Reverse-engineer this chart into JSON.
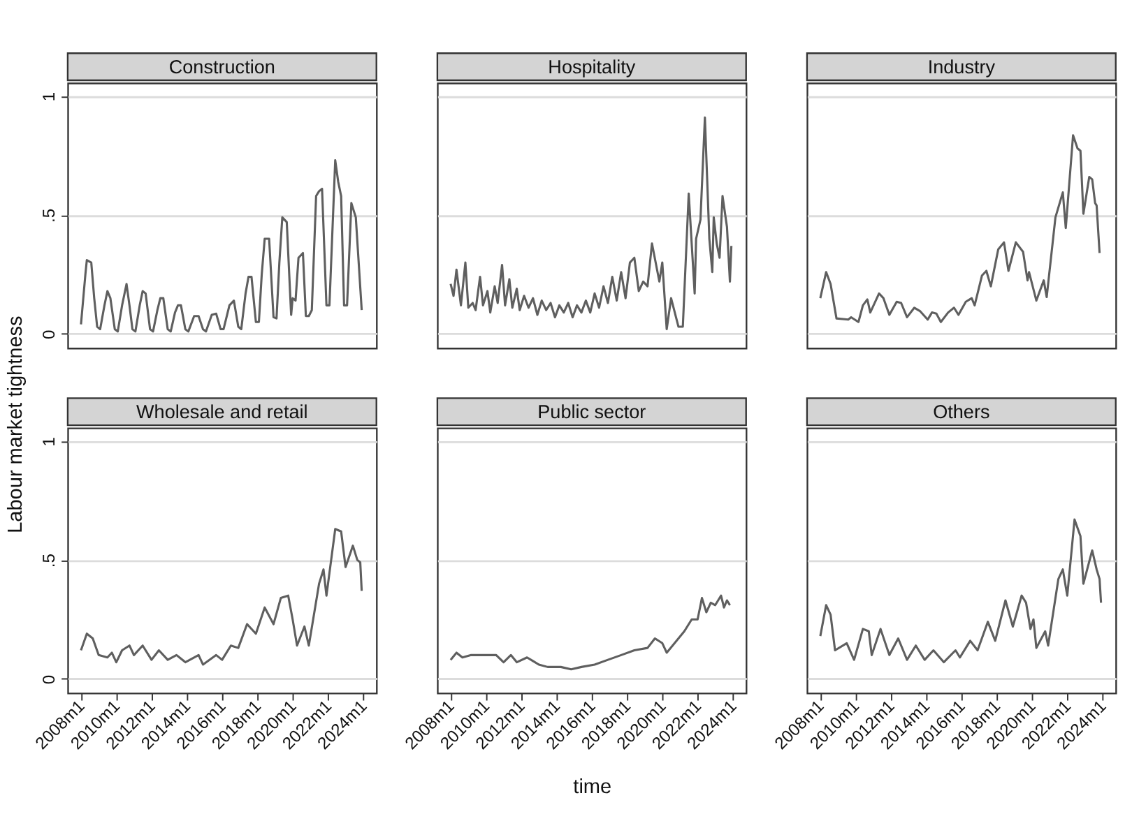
{
  "chart_data": [
    {
      "type": "line",
      "title": "Construction",
      "ylabel": "Labour market tightness",
      "xlim": [
        "2007-04",
        "2024-10"
      ],
      "ylim": [
        -0.06,
        1.055
      ],
      "yticks": [
        0,
        {
          "value": 0.5,
          "label": ".5"
        },
        1
      ],
      "grid": "y",
      "tick_labels": "y",
      "x": [
        "2008-01",
        "2008-04",
        "2008-05",
        "2008-08",
        "2008-10",
        "2008-12",
        "2009-02",
        "2009-05",
        "2009-07",
        "2009-09",
        "2009-12",
        "2010-02",
        "2010-05",
        "2010-08",
        "2010-10",
        "2010-12",
        "2011-02",
        "2011-05",
        "2011-07",
        "2011-09",
        "2011-12",
        "2012-02",
        "2012-05",
        "2012-07",
        "2012-09",
        "2012-12",
        "2013-02",
        "2013-05",
        "2013-07",
        "2013-09",
        "2013-12",
        "2014-02",
        "2014-06",
        "2014-09",
        "2014-12",
        "2015-02",
        "2015-06",
        "2015-09",
        "2015-12",
        "2016-02",
        "2016-06",
        "2016-09",
        "2016-12",
        "2017-02",
        "2017-05",
        "2017-07",
        "2017-09",
        "2017-12",
        "2018-02",
        "2018-04",
        "2018-06",
        "2018-09",
        "2018-12",
        "2019-02",
        "2019-04",
        "2019-06",
        "2019-09",
        "2019-12",
        "2020-01",
        "2020-03",
        "2020-05",
        "2020-08",
        "2020-10",
        "2020-12",
        "2021-02",
        "2021-05",
        "2021-07",
        "2021-09",
        "2021-12",
        "2022-02",
        "2022-06",
        "2022-08",
        "2022-10",
        "2022-12",
        "2023-02",
        "2023-05",
        "2023-08",
        "2023-12"
      ],
      "series": [
        {
          "color": "#5f5f5f",
          "values": [
            0.04,
            0.25,
            0.31,
            0.3,
            0.15,
            0.03,
            0.02,
            0.12,
            0.18,
            0.15,
            0.02,
            0.01,
            0.12,
            0.21,
            0.12,
            0.02,
            0.01,
            0.12,
            0.18,
            0.17,
            0.02,
            0.01,
            0.1,
            0.15,
            0.15,
            0.02,
            0.01,
            0.09,
            0.12,
            0.12,
            0.02,
            0.01,
            0.075,
            0.075,
            0.02,
            0.01,
            0.08,
            0.085,
            0.02,
            0.02,
            0.12,
            0.14,
            0.03,
            0.02,
            0.17,
            0.24,
            0.24,
            0.05,
            0.05,
            0.25,
            0.4,
            0.4,
            0.07,
            0.065,
            0.3,
            0.49,
            0.47,
            0.08,
            0.15,
            0.14,
            0.32,
            0.34,
            0.075,
            0.075,
            0.1,
            0.58,
            0.6,
            0.61,
            0.12,
            0.12,
            0.73,
            0.64,
            0.58,
            0.12,
            0.12,
            0.55,
            0.49,
            0.1
          ]
        }
      ]
    },
    {
      "type": "line",
      "title": "Hospitality",
      "xlim": [
        "2007-04",
        "2024-10"
      ],
      "ylim": [
        -0.06,
        1.055
      ],
      "yticks": [
        0,
        0.5,
        1
      ],
      "grid": "y",
      "tick_labels": false,
      "x": [
        "2008-01",
        "2008-03",
        "2008-05",
        "2008-08",
        "2008-11",
        "2009-01",
        "2009-04",
        "2009-06",
        "2009-09",
        "2009-11",
        "2010-02",
        "2010-04",
        "2010-07",
        "2010-09",
        "2010-12",
        "2011-02",
        "2011-05",
        "2011-07",
        "2011-10",
        "2011-12",
        "2012-03",
        "2012-06",
        "2012-09",
        "2012-12",
        "2013-03",
        "2013-06",
        "2013-09",
        "2013-12",
        "2014-03",
        "2014-06",
        "2014-09",
        "2014-12",
        "2015-03",
        "2015-06",
        "2015-09",
        "2015-12",
        "2016-03",
        "2016-06",
        "2016-09",
        "2016-12",
        "2017-03",
        "2017-06",
        "2017-09",
        "2017-12",
        "2018-03",
        "2018-06",
        "2018-09",
        "2018-12",
        "2019-03",
        "2019-06",
        "2019-11",
        "2020-01",
        "2020-04",
        "2020-07",
        "2020-12",
        "2021-03",
        "2021-07",
        "2021-11",
        "2021-12",
        "2022-03",
        "2022-06",
        "2022-09",
        "2022-11",
        "2022-12",
        "2023-02",
        "2023-04",
        "2023-06",
        "2023-09",
        "2023-11",
        "2023-12"
      ],
      "series": [
        {
          "color": "#5f5f5f",
          "values": [
            0.21,
            0.16,
            0.27,
            0.12,
            0.3,
            0.11,
            0.13,
            0.1,
            0.24,
            0.12,
            0.18,
            0.09,
            0.2,
            0.13,
            0.29,
            0.12,
            0.23,
            0.11,
            0.19,
            0.1,
            0.16,
            0.11,
            0.15,
            0.08,
            0.14,
            0.1,
            0.13,
            0.07,
            0.12,
            0.09,
            0.13,
            0.07,
            0.12,
            0.09,
            0.14,
            0.09,
            0.17,
            0.11,
            0.2,
            0.13,
            0.24,
            0.14,
            0.26,
            0.15,
            0.3,
            0.32,
            0.18,
            0.22,
            0.2,
            0.38,
            0.22,
            0.3,
            0.02,
            0.15,
            0.03,
            0.03,
            0.59,
            0.17,
            0.4,
            0.48,
            0.91,
            0.4,
            0.26,
            0.49,
            0.38,
            0.32,
            0.58,
            0.45,
            0.22,
            0.37
          ]
        }
      ]
    },
    {
      "type": "line",
      "title": "Industry",
      "xlim": [
        "2007-04",
        "2024-10"
      ],
      "ylim": [
        -0.06,
        1.055
      ],
      "yticks": [
        0,
        0.5,
        1
      ],
      "grid": "y",
      "tick_labels": false,
      "x": [
        "2008-01",
        "2008-05",
        "2008-08",
        "2008-12",
        "2009-08",
        "2009-10",
        "2010-03",
        "2010-06",
        "2010-09",
        "2010-11",
        "2011-05",
        "2011-08",
        "2011-12",
        "2012-05",
        "2012-08",
        "2012-12",
        "2013-05",
        "2013-09",
        "2014-02",
        "2014-05",
        "2014-08",
        "2014-11",
        "2015-04",
        "2015-08",
        "2015-11",
        "2016-04",
        "2016-08",
        "2016-10",
        "2017-03",
        "2017-06",
        "2017-09",
        "2018-02",
        "2018-06",
        "2018-09",
        "2019-02",
        "2019-07",
        "2019-10",
        "2019-11",
        "2020-04",
        "2020-09",
        "2020-11",
        "2021-05",
        "2021-10",
        "2021-12",
        "2022-05",
        "2022-08",
        "2022-10",
        "2022-12",
        "2023-04",
        "2023-06",
        "2023-08",
        "2023-09",
        "2023-11"
      ],
      "series": [
        {
          "color": "#5f5f5f",
          "values": [
            0.15,
            0.26,
            0.21,
            0.065,
            0.06,
            0.07,
            0.05,
            0.12,
            0.145,
            0.09,
            0.17,
            0.15,
            0.08,
            0.135,
            0.13,
            0.07,
            0.11,
            0.095,
            0.06,
            0.09,
            0.085,
            0.05,
            0.09,
            0.11,
            0.08,
            0.135,
            0.15,
            0.12,
            0.245,
            0.265,
            0.2,
            0.355,
            0.385,
            0.265,
            0.385,
            0.345,
            0.225,
            0.26,
            0.14,
            0.225,
            0.155,
            0.49,
            0.595,
            0.445,
            0.835,
            0.78,
            0.77,
            0.505,
            0.66,
            0.65,
            0.55,
            0.54,
            0.34
          ]
        }
      ]
    },
    {
      "type": "line",
      "title": "Wholesale and retail",
      "xlim": [
        "2007-04",
        "2024-10"
      ],
      "ylim": [
        -0.06,
        1.055
      ],
      "yticks": [
        0,
        {
          "value": 0.5,
          "label": ".5"
        },
        1
      ],
      "xticks": [
        {
          "value": "2008-01",
          "label": "2008m1"
        },
        {
          "value": "2010-01",
          "label": "2010m1"
        },
        {
          "value": "2012-01",
          "label": "2012m1"
        },
        {
          "value": "2014-01",
          "label": "2014m1"
        },
        {
          "value": "2016-01",
          "label": "2016m1"
        },
        {
          "value": "2018-01",
          "label": "2018m1"
        },
        {
          "value": "2020-01",
          "label": "2020m1"
        },
        {
          "value": "2022-01",
          "label": "2022m1"
        },
        {
          "value": "2024-01",
          "label": "2024m1"
        }
      ],
      "grid": "y",
      "x": [
        "2008-01",
        "2008-05",
        "2008-09",
        "2009-01",
        "2009-07",
        "2009-10",
        "2010-01",
        "2010-05",
        "2010-10",
        "2011-01",
        "2011-07",
        "2012-01",
        "2012-06",
        "2012-12",
        "2013-06",
        "2013-12",
        "2014-09",
        "2014-12",
        "2015-09",
        "2016-01",
        "2016-07",
        "2016-12",
        "2017-06",
        "2017-12",
        "2018-06",
        "2018-12",
        "2019-05",
        "2019-10",
        "2020-01",
        "2020-04",
        "2020-09",
        "2020-12",
        "2021-07",
        "2021-10",
        "2021-12",
        "2022-06",
        "2022-10",
        "2023-01",
        "2023-06",
        "2023-09",
        "2023-11",
        "2023-12"
      ],
      "series": [
        {
          "color": "#5f5f5f",
          "values": [
            0.12,
            0.19,
            0.17,
            0.1,
            0.09,
            0.11,
            0.07,
            0.12,
            0.14,
            0.1,
            0.14,
            0.08,
            0.12,
            0.08,
            0.1,
            0.07,
            0.1,
            0.06,
            0.1,
            0.08,
            0.14,
            0.13,
            0.23,
            0.19,
            0.3,
            0.23,
            0.34,
            0.35,
            0.25,
            0.14,
            0.22,
            0.14,
            0.4,
            0.46,
            0.35,
            0.63,
            0.62,
            0.47,
            0.56,
            0.5,
            0.49,
            0.37
          ]
        }
      ]
    },
    {
      "type": "line",
      "title": "Public sector",
      "xlabel": "time",
      "xlim": [
        "2007-04",
        "2024-10"
      ],
      "ylim": [
        -0.06,
        1.055
      ],
      "yticks": [
        0,
        0.5,
        1
      ],
      "xticks": [
        {
          "value": "2008-01",
          "label": "2008m1"
        },
        {
          "value": "2010-01",
          "label": "2010m1"
        },
        {
          "value": "2012-01",
          "label": "2012m1"
        },
        {
          "value": "2014-01",
          "label": "2014m1"
        },
        {
          "value": "2016-01",
          "label": "2016m1"
        },
        {
          "value": "2018-01",
          "label": "2018m1"
        },
        {
          "value": "2020-01",
          "label": "2020m1"
        },
        {
          "value": "2022-01",
          "label": "2022m1"
        },
        {
          "value": "2024-01",
          "label": "2024m1"
        }
      ],
      "grid": "y",
      "tick_labels": "x",
      "x": [
        "2008-01",
        "2008-05",
        "2008-09",
        "2009-03",
        "2009-09",
        "2010-03",
        "2010-08",
        "2011-01",
        "2011-06",
        "2011-10",
        "2012-05",
        "2013-01",
        "2013-07",
        "2014-04",
        "2014-11",
        "2015-06",
        "2016-03",
        "2016-12",
        "2017-09",
        "2018-06",
        "2019-03",
        "2019-08",
        "2020-01",
        "2020-04",
        "2020-08",
        "2021-04",
        "2021-09",
        "2022-01",
        "2022-04",
        "2022-07",
        "2022-10",
        "2023-01",
        "2023-05",
        "2023-07",
        "2023-09",
        "2023-11"
      ],
      "series": [
        {
          "color": "#5f5f5f",
          "values": [
            0.08,
            0.11,
            0.09,
            0.1,
            0.1,
            0.1,
            0.1,
            0.07,
            0.1,
            0.07,
            0.09,
            0.06,
            0.05,
            0.05,
            0.04,
            0.05,
            0.06,
            0.08,
            0.1,
            0.12,
            0.13,
            0.17,
            0.15,
            0.11,
            0.14,
            0.2,
            0.25,
            0.25,
            0.34,
            0.28,
            0.32,
            0.31,
            0.35,
            0.3,
            0.33,
            0.31
          ]
        }
      ]
    },
    {
      "type": "line",
      "title": "Others",
      "xlim": [
        "2007-04",
        "2024-10"
      ],
      "ylim": [
        -0.06,
        1.055
      ],
      "yticks": [
        0,
        0.5,
        1
      ],
      "xticks": [
        {
          "value": "2008-01",
          "label": "2008m1"
        },
        {
          "value": "2010-01",
          "label": "2010m1"
        },
        {
          "value": "2012-01",
          "label": "2012m1"
        },
        {
          "value": "2014-01",
          "label": "2014m1"
        },
        {
          "value": "2016-01",
          "label": "2016m1"
        },
        {
          "value": "2018-01",
          "label": "2018m1"
        },
        {
          "value": "2020-01",
          "label": "2020m1"
        },
        {
          "value": "2022-01",
          "label": "2022m1"
        },
        {
          "value": "2024-01",
          "label": "2024m1"
        }
      ],
      "grid": "y",
      "tick_labels": "x",
      "x": [
        "2008-01",
        "2008-05",
        "2008-08",
        "2008-11",
        "2009-07",
        "2009-12",
        "2010-06",
        "2010-10",
        "2010-12",
        "2011-06",
        "2011-12",
        "2012-06",
        "2012-12",
        "2013-06",
        "2013-12",
        "2014-06",
        "2015-01",
        "2015-09",
        "2015-12",
        "2016-07",
        "2016-12",
        "2017-07",
        "2017-12",
        "2018-07",
        "2018-12",
        "2019-06",
        "2019-09",
        "2019-12",
        "2020-02",
        "2020-04",
        "2020-10",
        "2020-12",
        "2021-07",
        "2021-10",
        "2022-01",
        "2022-06",
        "2022-10",
        "2022-12",
        "2023-06",
        "2023-09",
        "2023-11",
        "2023-12"
      ],
      "series": [
        {
          "color": "#5f5f5f",
          "values": [
            0.18,
            0.31,
            0.27,
            0.12,
            0.15,
            0.08,
            0.21,
            0.2,
            0.1,
            0.21,
            0.1,
            0.17,
            0.08,
            0.14,
            0.08,
            0.12,
            0.07,
            0.12,
            0.09,
            0.16,
            0.12,
            0.24,
            0.16,
            0.33,
            0.22,
            0.35,
            0.32,
            0.21,
            0.25,
            0.13,
            0.2,
            0.14,
            0.42,
            0.46,
            0.35,
            0.67,
            0.6,
            0.4,
            0.54,
            0.46,
            0.42,
            0.32
          ]
        }
      ]
    }
  ]
}
